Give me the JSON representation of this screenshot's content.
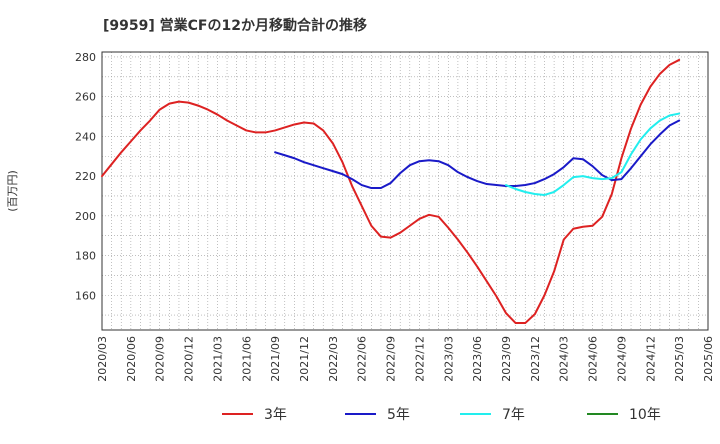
{
  "title": "[9959]  営業CFの12か月移動合計の推移",
  "chart_data": {
    "type": "line",
    "title": "[9959]  営業CFの12か月移動合計の推移",
    "xlabel": "",
    "ylabel": "(百万円)",
    "ylim": [
      142.5,
      282.5
    ],
    "yticks": [
      160,
      180,
      200,
      220,
      240,
      260,
      280
    ],
    "x_tick_labels": [
      "2020/03",
      "2020/06",
      "2020/09",
      "2020/12",
      "2021/03",
      "2021/06",
      "2021/09",
      "2021/12",
      "2022/03",
      "2022/06",
      "2022/09",
      "2022/12",
      "2023/03",
      "2023/06",
      "2023/09",
      "2023/12",
      "2024/03",
      "2024/06",
      "2024/09",
      "2024/12",
      "2025/03",
      "2025/06"
    ],
    "x_start": "2020/03",
    "grid": true,
    "legend_position": "bottom",
    "series": [
      {
        "name": "3年",
        "color": "#dd2222",
        "x": [
          "2020/03",
          "2020/04",
          "2020/05",
          "2020/06",
          "2020/07",
          "2020/08",
          "2020/09",
          "2020/10",
          "2020/11",
          "2020/12",
          "2021/01",
          "2021/02",
          "2021/03",
          "2021/04",
          "2021/05",
          "2021/06",
          "2021/07",
          "2021/08",
          "2021/09",
          "2021/10",
          "2021/11",
          "2021/12",
          "2022/01",
          "2022/02",
          "2022/03",
          "2022/04",
          "2022/05",
          "2022/06",
          "2022/07",
          "2022/08",
          "2022/09",
          "2022/10",
          "2022/11",
          "2022/12",
          "2023/01",
          "2023/02",
          "2023/03",
          "2023/04",
          "2023/05",
          "2023/06",
          "2023/07",
          "2023/08",
          "2023/09",
          "2023/10",
          "2023/11",
          "2023/12",
          "2024/01",
          "2024/02",
          "2024/03",
          "2024/04",
          "2024/05",
          "2024/06",
          "2024/07",
          "2024/08",
          "2024/09",
          "2024/10",
          "2024/11",
          "2024/12",
          "2025/01",
          "2025/02",
          "2025/03"
        ],
        "values": [
          220,
          226,
          232,
          237.5,
          243,
          248,
          253.5,
          256.5,
          257.5,
          257,
          255.5,
          253.5,
          251,
          248,
          245.5,
          243,
          242,
          242,
          243,
          244.5,
          246,
          247,
          246.5,
          243,
          236.5,
          227,
          215,
          205,
          195,
          189.5,
          189,
          191.5,
          195,
          198.5,
          200.5,
          199.5,
          194,
          188,
          181.5,
          174.5,
          167,
          159.5,
          151,
          146,
          146,
          150.5,
          160,
          172,
          188,
          193.5,
          194.5,
          195,
          199.5,
          211,
          229,
          244,
          256,
          265,
          271.5,
          276,
          278.5
        ]
      },
      {
        "name": "5年",
        "color": "#1a1ac8",
        "x": [
          "2021/09",
          "2021/10",
          "2021/11",
          "2021/12",
          "2022/01",
          "2022/02",
          "2022/03",
          "2022/04",
          "2022/05",
          "2022/06",
          "2022/07",
          "2022/08",
          "2022/09",
          "2022/10",
          "2022/11",
          "2022/12",
          "2023/01",
          "2023/02",
          "2023/03",
          "2023/04",
          "2023/05",
          "2023/06",
          "2023/07",
          "2023/08",
          "2023/09",
          "2023/10",
          "2023/11",
          "2023/12",
          "2024/01",
          "2024/02",
          "2024/03",
          "2024/04",
          "2024/05",
          "2024/06",
          "2024/07",
          "2024/08",
          "2024/09",
          "2024/10",
          "2024/11",
          "2024/12",
          "2025/01",
          "2025/02",
          "2025/03"
        ],
        "values": [
          232,
          230.5,
          229,
          227,
          225.5,
          224,
          222.5,
          221,
          218.5,
          215.5,
          214,
          214,
          216.5,
          221.5,
          225.5,
          227.5,
          228,
          227.5,
          225.5,
          222,
          219.5,
          217.5,
          216,
          215.5,
          215,
          215,
          215.5,
          216.5,
          218.5,
          221,
          224.5,
          229,
          228.5,
          225,
          220.5,
          218,
          218.5,
          224,
          230,
          236,
          241,
          245.5,
          248
        ]
      },
      {
        "name": "7年",
        "color": "#22eeee",
        "x": [
          "2023/09",
          "2023/10",
          "2023/11",
          "2023/12",
          "2024/01",
          "2024/02",
          "2024/03",
          "2024/04",
          "2024/05",
          "2024/06",
          "2024/07",
          "2024/08",
          "2024/09",
          "2024/10",
          "2024/11",
          "2024/12",
          "2025/01",
          "2025/02",
          "2025/03"
        ],
        "values": [
          215.5,
          213.5,
          212,
          211,
          210.5,
          212,
          215.5,
          219.5,
          220,
          219,
          218.5,
          219,
          222,
          231,
          238.5,
          244,
          248,
          250.5,
          251.5
        ]
      },
      {
        "name": "10年",
        "color": "#228822",
        "x": [],
        "values": []
      }
    ]
  }
}
